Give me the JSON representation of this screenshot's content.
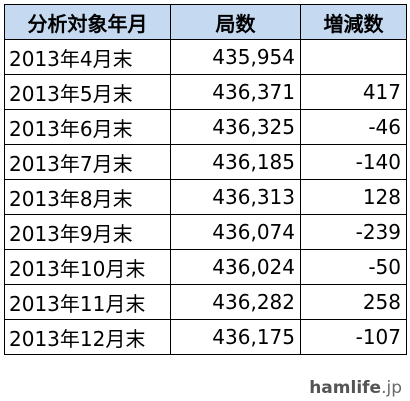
{
  "table": {
    "header": [
      "分析対象年月",
      "局数",
      "増減数"
    ],
    "rows": [
      [
        "2013年4月末",
        "435,954"
      ],
      [
        "2013年5月末",
        "436,371",
        "417"
      ],
      [
        "2013年6月末",
        "436,325",
        "-46"
      ],
      [
        "2013年7月末",
        "436,185",
        "-140"
      ],
      [
        "2013年8月末",
        "436,313",
        "128"
      ],
      [
        "2013年9月末",
        "436,074",
        "-239"
      ],
      [
        "2013年10月末",
        "436,024",
        "-50"
      ],
      [
        "2013年11月末",
        "436,282",
        "258"
      ],
      [
        "2013年12月末",
        "436,175",
        "-107"
      ]
    ]
  },
  "watermark": {
    "brand": "hamlife",
    "suffix": ".jp"
  }
}
